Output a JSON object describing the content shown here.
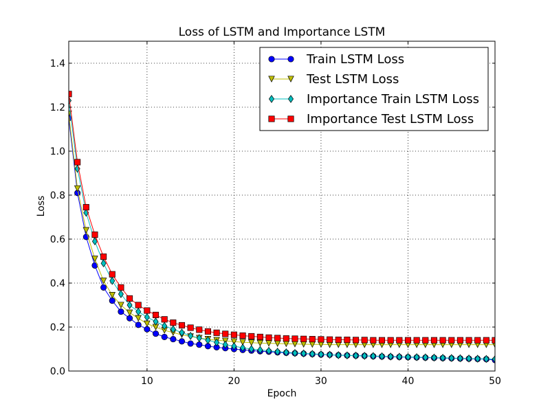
{
  "chart_data": {
    "type": "line",
    "title": "Loss of LSTM and Importance LSTM",
    "xlabel": "Epoch",
    "ylabel": "Loss",
    "xlim": [
      1,
      50
    ],
    "ylim": [
      0.0,
      1.5
    ],
    "grid": true,
    "grid_style": "dotted",
    "legend_position": "top-right",
    "x_ticks": [
      "10",
      "20",
      "30",
      "40",
      "50"
    ],
    "y_ticks": [
      "0.0",
      "0.2",
      "0.4",
      "0.6",
      "0.8",
      "1.0",
      "1.2",
      "1.4"
    ],
    "x": [
      1,
      2,
      3,
      4,
      5,
      6,
      7,
      8,
      9,
      10,
      11,
      12,
      13,
      14,
      15,
      16,
      17,
      18,
      19,
      20,
      21,
      22,
      23,
      24,
      25,
      26,
      27,
      28,
      29,
      30,
      31,
      32,
      33,
      34,
      35,
      36,
      37,
      38,
      39,
      40,
      41,
      42,
      43,
      44,
      45,
      46,
      47,
      48,
      49,
      50
    ],
    "series": [
      {
        "name": "Train LSTM Loss",
        "color": "#0000ff",
        "marker": "circle",
        "values": [
          1.15,
          0.81,
          0.61,
          0.48,
          0.38,
          0.32,
          0.27,
          0.24,
          0.21,
          0.19,
          0.17,
          0.155,
          0.145,
          0.135,
          0.125,
          0.12,
          0.113,
          0.108,
          0.104,
          0.1,
          0.096,
          0.093,
          0.09,
          0.088,
          0.085,
          0.083,
          0.081,
          0.079,
          0.077,
          0.075,
          0.074,
          0.072,
          0.071,
          0.07,
          0.069,
          0.067,
          0.066,
          0.065,
          0.064,
          0.063,
          0.062,
          0.061,
          0.06,
          0.059,
          0.058,
          0.057,
          0.056,
          0.055,
          0.054,
          0.05
        ]
      },
      {
        "name": "Test LSTM Loss",
        "color": "#bfbf00",
        "marker": "triangle-down",
        "values": [
          1.17,
          0.83,
          0.64,
          0.51,
          0.41,
          0.345,
          0.3,
          0.265,
          0.24,
          0.215,
          0.2,
          0.185,
          0.175,
          0.165,
          0.157,
          0.15,
          0.145,
          0.14,
          0.137,
          0.134,
          0.131,
          0.129,
          0.127,
          0.126,
          0.125,
          0.124,
          0.123,
          0.122,
          0.121,
          0.121,
          0.12,
          0.12,
          0.12,
          0.12,
          0.12,
          0.12,
          0.12,
          0.12,
          0.12,
          0.12,
          0.12,
          0.12,
          0.12,
          0.12,
          0.12,
          0.12,
          0.12,
          0.12,
          0.12,
          0.12
        ]
      },
      {
        "name": "Importance Train LSTM Loss",
        "color": "#00bfbf",
        "marker": "diamond",
        "values": [
          1.23,
          0.92,
          0.72,
          0.59,
          0.49,
          0.41,
          0.35,
          0.3,
          0.27,
          0.245,
          0.225,
          0.205,
          0.19,
          0.175,
          0.16,
          0.15,
          0.14,
          0.13,
          0.12,
          0.113,
          0.106,
          0.1,
          0.096,
          0.092,
          0.088,
          0.085,
          0.082,
          0.08,
          0.078,
          0.076,
          0.074,
          0.072,
          0.071,
          0.07,
          0.069,
          0.068,
          0.067,
          0.066,
          0.065,
          0.064,
          0.063,
          0.062,
          0.061,
          0.06,
          0.059,
          0.058,
          0.057,
          0.056,
          0.055,
          0.054
        ]
      },
      {
        "name": "Importance Test LSTM Loss",
        "color": "#ff0000",
        "marker": "square",
        "values": [
          1.26,
          0.95,
          0.745,
          0.62,
          0.52,
          0.44,
          0.38,
          0.33,
          0.3,
          0.275,
          0.255,
          0.235,
          0.22,
          0.208,
          0.197,
          0.188,
          0.18,
          0.174,
          0.169,
          0.165,
          0.161,
          0.158,
          0.155,
          0.152,
          0.15,
          0.148,
          0.147,
          0.146,
          0.145,
          0.144,
          0.143,
          0.142,
          0.142,
          0.141,
          0.141,
          0.14,
          0.14,
          0.14,
          0.14,
          0.14,
          0.14,
          0.14,
          0.14,
          0.14,
          0.14,
          0.14,
          0.14,
          0.14,
          0.14,
          0.14
        ]
      }
    ]
  }
}
